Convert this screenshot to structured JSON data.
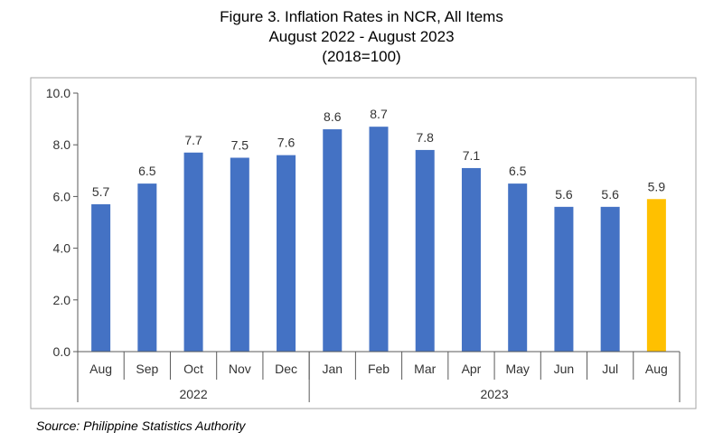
{
  "chart_data": {
    "type": "bar",
    "title": "Figure 3. Inflation Rates in NCR, All Items",
    "subtitle": "August 2022 - August 2023",
    "subtitle2": "(2018=100)",
    "categories": [
      "Aug",
      "Sep",
      "Oct",
      "Nov",
      "Dec",
      "Jan",
      "Feb",
      "Mar",
      "Apr",
      "May",
      "Jun",
      "Jul",
      "Aug"
    ],
    "groups": [
      {
        "label": "2022",
        "count": 5
      },
      {
        "label": "2023",
        "count": 8
      }
    ],
    "series": [
      {
        "values": [
          5.7,
          6.5,
          7.7,
          7.5,
          7.6,
          8.6,
          8.7,
          7.8,
          7.1,
          6.5,
          5.6,
          5.6,
          5.9
        ]
      }
    ],
    "data_labels": [
      "5.7",
      "6.5",
      "7.7",
      "7.5",
      "7.6",
      "8.6",
      "8.7",
      "7.8",
      "7.1",
      "6.5",
      "5.6",
      "5.6",
      "5.9"
    ],
    "yticks": [
      "0.0",
      "2.0",
      "4.0",
      "6.0",
      "8.0",
      "10.0"
    ],
    "ylim": [
      0,
      10
    ],
    "grid": false,
    "bar_color": "#4472C4",
    "highlight_color": "#FFC000",
    "highlight_index": 12
  },
  "source": "Source: Philippine Statistics Authority"
}
